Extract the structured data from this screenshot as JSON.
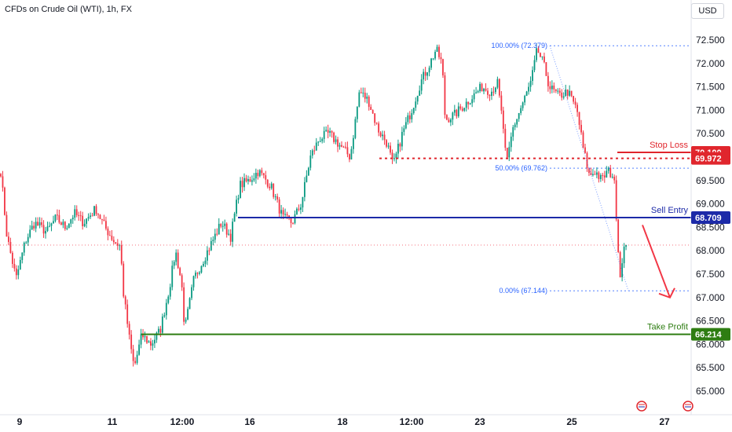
{
  "chart_title": "CFDs on Crude Oil (WTI), 1h, FX",
  "currency": "USD",
  "chart_data": {
    "type": "candlestick",
    "title": "CFDs on Crude Oil (WTI), 1h, FX",
    "ylim": [
      64.75,
      73.0
    ],
    "y_ticks": [
      65.0,
      65.5,
      66.0,
      66.5,
      67.0,
      67.5,
      68.0,
      68.5,
      69.0,
      69.5,
      70.0,
      70.5,
      71.0,
      71.5,
      72.0,
      72.5
    ],
    "x_ticks": [
      "9",
      "11",
      "12:00",
      "16",
      "18",
      "12:00",
      "23",
      "25",
      "27"
    ],
    "current_price": 68.12,
    "levels": [
      {
        "label": "Stop Loss",
        "value": 70.1,
        "color": "#e0262d"
      },
      {
        "label": "Sell Entry",
        "value": 68.709,
        "color": "#1c2aa8"
      },
      {
        "label": "Take Profit",
        "value": 66.214,
        "color": "#2e7d12"
      }
    ],
    "price_labels": [
      {
        "text": "70.100",
        "value": 70.1,
        "color": "#e0262d"
      },
      {
        "text": "69.972",
        "value": 69.972,
        "color": "#e0262d"
      },
      {
        "text": "68.709",
        "value": 68.709,
        "color": "#1c2aa8"
      },
      {
        "text": "66.214",
        "value": 66.214,
        "color": "#2e7d12"
      }
    ],
    "resistance_dotted": 69.972,
    "fibonacci": [
      {
        "label": "100.00% (72.379)",
        "value": 72.379
      },
      {
        "label": "50.00% (69.762)",
        "value": 69.762
      },
      {
        "label": "0.00% (67.144)",
        "value": 67.144
      }
    ],
    "fib_range": {
      "from": 72.379,
      "to": 67.144
    },
    "candle_count": 322,
    "path_points": [
      [
        0,
        69.7
      ],
      [
        4,
        68.3
      ],
      [
        10,
        67.4
      ],
      [
        16,
        68.2
      ],
      [
        22,
        68.6
      ],
      [
        30,
        68.4
      ],
      [
        36,
        68.7
      ],
      [
        42,
        68.5
      ],
      [
        48,
        68.8
      ],
      [
        54,
        68.6
      ],
      [
        62,
        68.9
      ],
      [
        68,
        68.5
      ],
      [
        74,
        68.2
      ],
      [
        78,
        68.1
      ],
      [
        80,
        67.1
      ],
      [
        84,
        66.1
      ],
      [
        87,
        65.5
      ],
      [
        92,
        66.2
      ],
      [
        98,
        66.0
      ],
      [
        104,
        66.3
      ],
      [
        110,
        67.2
      ],
      [
        114,
        68.0
      ],
      [
        118,
        67.3
      ],
      [
        120,
        66.3
      ],
      [
        126,
        67.4
      ],
      [
        132,
        67.8
      ],
      [
        138,
        68.2
      ],
      [
        144,
        68.6
      ],
      [
        150,
        68.3
      ],
      [
        156,
        69.4
      ],
      [
        162,
        69.5
      ],
      [
        168,
        69.7
      ],
      [
        176,
        69.4
      ],
      [
        184,
        68.7
      ],
      [
        190,
        68.6
      ],
      [
        196,
        69.0
      ],
      [
        202,
        70.0
      ],
      [
        208,
        70.4
      ],
      [
        214,
        70.5
      ],
      [
        220,
        70.3
      ],
      [
        228,
        70.0
      ],
      [
        234,
        71.4
      ],
      [
        240,
        71.2
      ],
      [
        246,
        70.6
      ],
      [
        252,
        70.3
      ],
      [
        256,
        69.8
      ],
      [
        262,
        70.5
      ],
      [
        268,
        71.0
      ],
      [
        274,
        71.6
      ],
      [
        280,
        72.0
      ],
      [
        284,
        72.3
      ],
      [
        288,
        72.0
      ],
      [
        290,
        70.8
      ],
      [
        296,
        70.9
      ],
      [
        302,
        71.1
      ],
      [
        308,
        71.3
      ],
      [
        314,
        71.5
      ],
      [
        320,
        71.4
      ],
      [
        324,
        71.6
      ],
      [
        328,
        70.6
      ],
      [
        330,
        69.8
      ],
      [
        334,
        70.6
      ],
      [
        340,
        71.1
      ],
      [
        346,
        71.6
      ],
      [
        350,
        72.3
      ],
      [
        354,
        72.0
      ],
      [
        358,
        71.5
      ],
      [
        364,
        71.3
      ],
      [
        370,
        71.4
      ],
      [
        376,
        71.0
      ],
      [
        380,
        70.2
      ],
      [
        384,
        69.6
      ],
      [
        388,
        69.7
      ],
      [
        392,
        69.5
      ],
      [
        396,
        69.7
      ],
      [
        400,
        69.6
      ],
      [
        402,
        68.6
      ],
      [
        404,
        67.4
      ],
      [
        406,
        68.0
      ],
      [
        408,
        68.12
      ]
    ]
  }
}
